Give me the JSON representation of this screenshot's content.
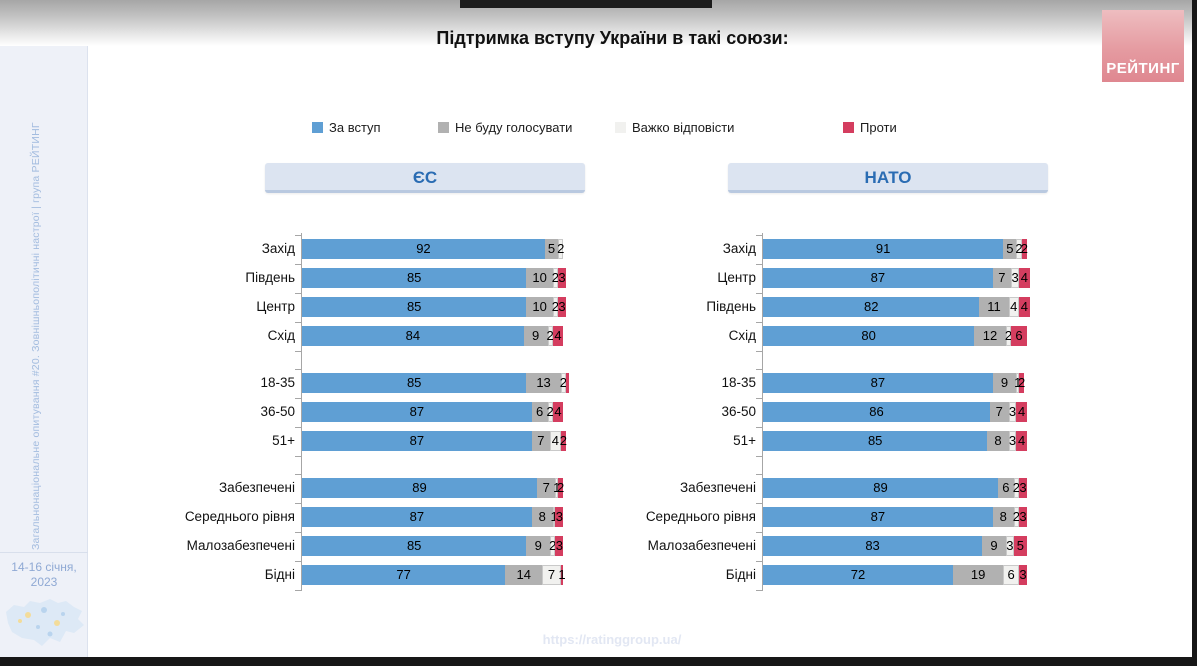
{
  "title": "Підтримка вступу України в такі союзи:",
  "logo_text": "РЕЙТИНГ",
  "footer_url": "https://ratinggroup.ua/",
  "sidebar": {
    "vertical_text": "Загальнонаціональне опитування #20. Зовнішньополітичні настрої | група РЕЙТИНГ",
    "date_line1": "14-16 січня,",
    "date_line2": "2023"
  },
  "legend": {
    "items": [
      {
        "label": "За вступ",
        "color": "#5f9fd4"
      },
      {
        "label": "Не буду голосувати",
        "color": "#b1b1b1"
      },
      {
        "label": "Важко відповісти",
        "color": "#f1f1ef"
      },
      {
        "label": "Проти",
        "color": "#d43d5f"
      }
    ]
  },
  "colors": {
    "accent_blue": "#2a6cb3",
    "logo_pink": "#e59ba1",
    "series": [
      "#5f9fd4",
      "#b1b1b1",
      "#f1f1ef",
      "#d43d5f"
    ]
  },
  "chart_data": {
    "type": "bar",
    "orientation": "horizontal-stacked",
    "xlim": [
      0,
      100
    ],
    "grid": false,
    "legend_position": "top",
    "series_names": [
      "За вступ",
      "Не буду голосувати",
      "Важко відповісти",
      "Проти"
    ],
    "series_keys": [
      "za-vstup",
      "ne-budu-holosuvaty",
      "vazhko-vidpovisty",
      "proty"
    ],
    "colors": [
      "#5f9fd4",
      "#b1b1b1",
      "#f1f1ef",
      "#d43d5f"
    ],
    "panels": [
      {
        "title": "ЄС",
        "groups": [
          {
            "rows": [
              {
                "label": "Захід",
                "values": [
                  92,
                  5,
                  2,
                  0
                ],
                "labels": [
                  "92",
                  "5",
                  "2",
                  ""
                ]
              },
              {
                "label": "Південь",
                "values": [
                  85,
                  10,
                  2,
                  3
                ],
                "labels": [
                  "85",
                  "10",
                  "2",
                  "3"
                ]
              },
              {
                "label": "Центр",
                "values": [
                  85,
                  10,
                  2,
                  3
                ],
                "labels": [
                  "85",
                  "10",
                  "2",
                  "3"
                ]
              },
              {
                "label": "Схід",
                "values": [
                  84,
                  9,
                  2,
                  4
                ],
                "labels": [
                  "84",
                  "9",
                  "2",
                  "4"
                ]
              }
            ]
          },
          {
            "rows": [
              {
                "label": "18-35",
                "values": [
                  85,
                  13,
                  2,
                  1
                ],
                "labels": [
                  "85",
                  "13",
                  "2",
                  ""
                ]
              },
              {
                "label": "36-50",
                "values": [
                  87,
                  6,
                  2,
                  4
                ],
                "labels": [
                  "87",
                  "6",
                  "2",
                  "4"
                ]
              },
              {
                "label": "51+",
                "values": [
                  87,
                  7,
                  4,
                  2
                ],
                "labels": [
                  "87",
                  "7",
                  "4",
                  "2"
                ]
              }
            ]
          },
          {
            "rows": [
              {
                "label": "Забезпечені",
                "values": [
                  89,
                  7,
                  1,
                  2
                ],
                "labels": [
                  "89",
                  "7",
                  "1",
                  "2"
                ]
              },
              {
                "label": "Середнього рівня",
                "values": [
                  87,
                  8,
                  1,
                  3
                ],
                "labels": [
                  "87",
                  "8",
                  "1",
                  "3"
                ]
              },
              {
                "label": "Малозабезпечені",
                "values": [
                  85,
                  9,
                  2,
                  3
                ],
                "labels": [
                  "85",
                  "9",
                  "2",
                  "3"
                ]
              },
              {
                "label": "Бідні",
                "values": [
                  77,
                  14,
                  7,
                  1
                ],
                "labels": [
                  "77",
                  "14",
                  "7",
                  "1"
                ]
              }
            ]
          }
        ]
      },
      {
        "title": "НАТО",
        "groups": [
          {
            "rows": [
              {
                "label": "Захід",
                "values": [
                  91,
                  5,
                  2,
                  2
                ],
                "labels": [
                  "91",
                  "5",
                  "2",
                  "2"
                ]
              },
              {
                "label": "Центр",
                "values": [
                  87,
                  7,
                  3,
                  4
                ],
                "labels": [
                  "87",
                  "7",
                  "3",
                  "4"
                ]
              },
              {
                "label": "Південь",
                "values": [
                  82,
                  11,
                  4,
                  4
                ],
                "labels": [
                  "82",
                  "11",
                  "4",
                  "4"
                ]
              },
              {
                "label": "Схід",
                "values": [
                  80,
                  12,
                  2,
                  6
                ],
                "labels": [
                  "80",
                  "12",
                  "2",
                  "6"
                ]
              }
            ]
          },
          {
            "rows": [
              {
                "label": "18-35",
                "values": [
                  87,
                  9,
                  1,
                  2
                ],
                "labels": [
                  "87",
                  "9",
                  "1",
                  "2"
                ]
              },
              {
                "label": "36-50",
                "values": [
                  86,
                  7,
                  3,
                  4
                ],
                "labels": [
                  "86",
                  "7",
                  "3",
                  "4"
                ]
              },
              {
                "label": "51+",
                "values": [
                  85,
                  8,
                  3,
                  4
                ],
                "labels": [
                  "85",
                  "8",
                  "3",
                  "4"
                ]
              }
            ]
          },
          {
            "rows": [
              {
                "label": "Забезпечені",
                "values": [
                  89,
                  6,
                  2,
                  3
                ],
                "labels": [
                  "89",
                  "6",
                  "2",
                  "3"
                ]
              },
              {
                "label": "Середнього рівня",
                "values": [
                  87,
                  8,
                  2,
                  3
                ],
                "labels": [
                  "87",
                  "8",
                  "2",
                  "3"
                ]
              },
              {
                "label": "Малозабезпечені",
                "values": [
                  83,
                  9,
                  3,
                  5
                ],
                "labels": [
                  "83",
                  "9",
                  "3",
                  "5"
                ]
              },
              {
                "label": "Бідні",
                "values": [
                  72,
                  19,
                  6,
                  3
                ],
                "labels": [
                  "72",
                  "19",
                  "6",
                  "3"
                ]
              }
            ]
          }
        ]
      }
    ]
  }
}
